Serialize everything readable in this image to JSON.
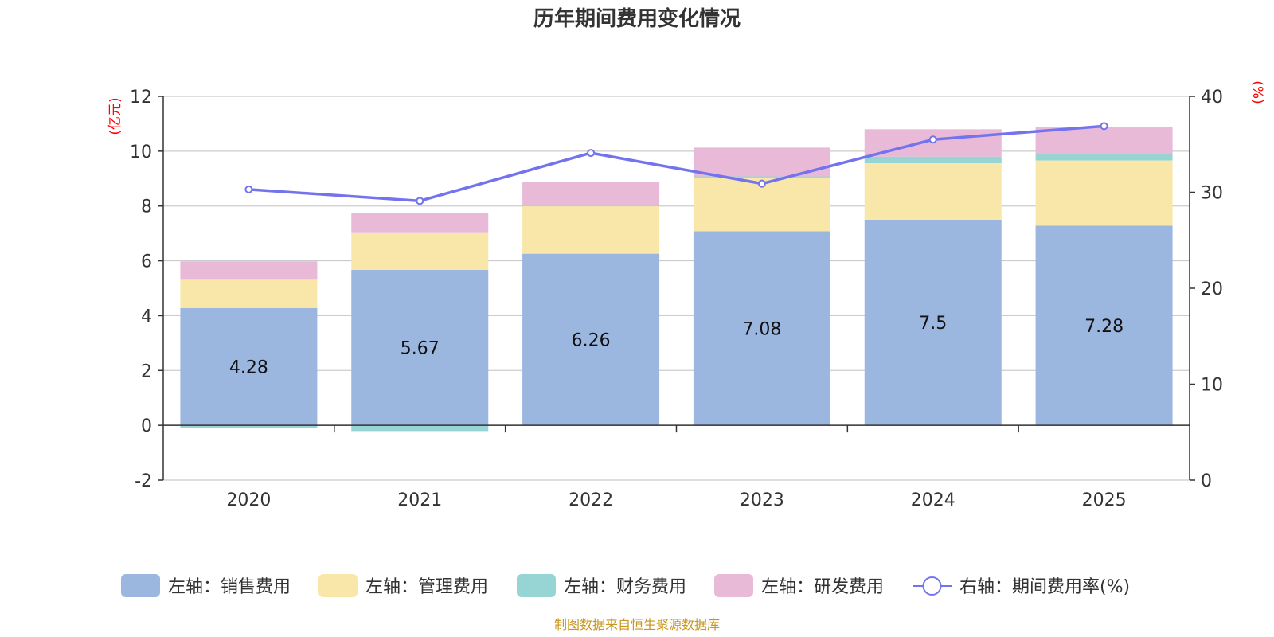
{
  "chart_data": {
    "type": "bar",
    "title": "历年期间费用变化情况",
    "categories": [
      "2020",
      "2021",
      "2022",
      "2023",
      "2024",
      "2025"
    ],
    "left_axis": {
      "unit": "(亿元)",
      "ylim": [
        -2,
        12
      ],
      "ticks": [
        -2,
        0,
        2,
        4,
        6,
        8,
        10,
        12
      ]
    },
    "right_axis": {
      "unit": "(%)",
      "ylim": [
        0,
        40
      ],
      "ticks": [
        0,
        10,
        20,
        30,
        40
      ]
    },
    "series": [
      {
        "name": "左轴：销售费用",
        "kind": "bar",
        "stack": "left",
        "color": "#9bb7e0",
        "values": [
          4.28,
          5.67,
          6.26,
          7.08,
          7.5,
          7.28
        ],
        "show_labels": true
      },
      {
        "name": "左轴：管理费用",
        "kind": "bar",
        "stack": "left",
        "color": "#f8e7a9",
        "values": [
          1.03,
          1.37,
          1.73,
          1.96,
          2.06,
          2.38
        ]
      },
      {
        "name": "左轴：财务费用",
        "kind": "bar",
        "stack": "left",
        "color": "#97d4d4",
        "values": [
          -0.1,
          -0.21,
          0.02,
          0.04,
          0.24,
          0.22
        ]
      },
      {
        "name": "左轴：研发费用",
        "kind": "bar",
        "stack": "left",
        "color": "#e8bad8",
        "values": [
          0.67,
          0.72,
          0.86,
          1.05,
          1.0,
          1.0
        ]
      },
      {
        "name": "右轴：期间费用率(%)",
        "kind": "line",
        "axis": "right",
        "color": "#7373ee",
        "values": [
          30.3,
          29.1,
          34.1,
          30.9,
          35.5,
          36.9
        ]
      }
    ],
    "legend_position": "bottom",
    "grid": true
  },
  "source_note": "制图数据来自恒生聚源数据库"
}
